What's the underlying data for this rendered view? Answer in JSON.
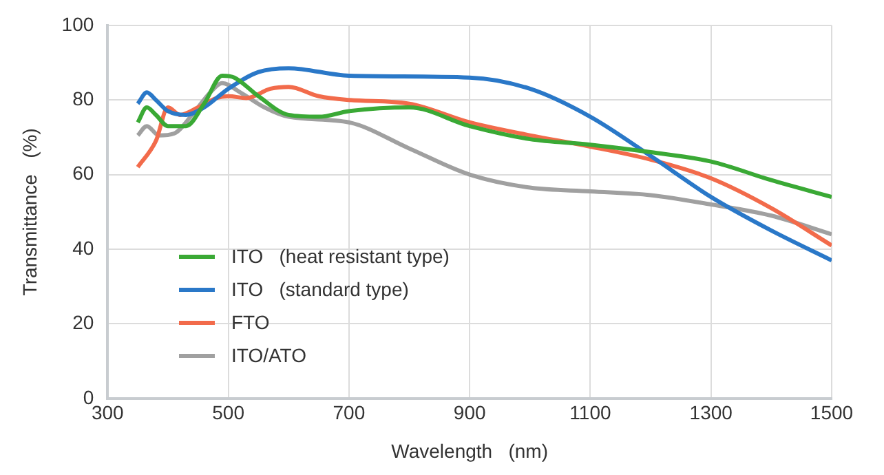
{
  "chart_data": {
    "type": "line",
    "xlabel": "Wavelength   (nm)",
    "ylabel": "Transmittance   (%)",
    "xlim": [
      300,
      1500
    ],
    "xticks": [
      300,
      500,
      700,
      900,
      1100,
      1300,
      1500
    ],
    "ylim": [
      0,
      100
    ],
    "yticks": [
      0,
      20,
      40,
      60,
      80,
      100
    ],
    "grid": true,
    "legend": "bottom left",
    "marker": "none",
    "line_style": "solid",
    "series": [
      {
        "name": "ITO   (heat resistant type)",
        "color": "#3aa935",
        "x": [
          350,
          365,
          380,
          400,
          430,
          460,
          490,
          510,
          550,
          600,
          650,
          700,
          800,
          900,
          1000,
          1100,
          1200,
          1300,
          1400,
          1500
        ],
        "values": [
          74,
          78,
          76,
          73,
          73,
          79,
          86.5,
          86,
          81,
          76,
          75.5,
          77,
          78,
          73,
          69.5,
          68,
          66,
          63.5,
          58.5,
          54
        ]
      },
      {
        "name": "ITO   (standard type)",
        "color": "#2a78c8",
        "x": [
          350,
          365,
          380,
          400,
          430,
          460,
          500,
          550,
          600,
          700,
          900,
          1000,
          1100,
          1200,
          1300,
          1400,
          1500
        ],
        "values": [
          79,
          82,
          80,
          77,
          76,
          78,
          83,
          87.5,
          88.5,
          86.5,
          86,
          83,
          75.5,
          65,
          54,
          45,
          37
        ]
      },
      {
        "name": "FTO",
        "color": "#f26b4b",
        "x": [
          350,
          380,
          400,
          420,
          450,
          480,
          500,
          530,
          570,
          600,
          650,
          700,
          800,
          900,
          1000,
          1100,
          1200,
          1300,
          1400,
          1500
        ],
        "values": [
          62,
          69,
          78,
          76,
          78,
          80.5,
          81,
          80.5,
          83,
          83.5,
          81,
          80,
          79,
          74,
          70.5,
          67.5,
          64,
          59,
          51,
          41
        ]
      },
      {
        "name": "ITO/ATO",
        "color": "#a0a0a0",
        "x": [
          350,
          365,
          385,
          410,
          440,
          470,
          490,
          520,
          560,
          600,
          700,
          800,
          900,
          1000,
          1100,
          1200,
          1300,
          1400,
          1500
        ],
        "values": [
          70.5,
          73,
          70.5,
          71,
          76,
          82,
          84.5,
          82,
          78,
          75.5,
          74,
          67,
          60,
          56.5,
          55.5,
          54.5,
          52,
          49,
          44
        ]
      }
    ]
  }
}
